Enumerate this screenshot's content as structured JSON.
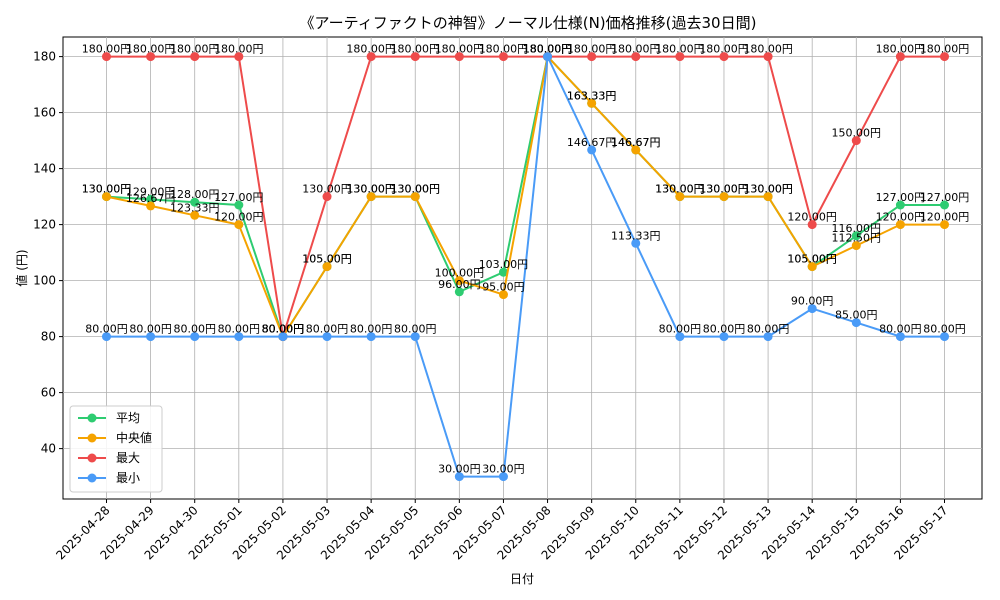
{
  "chart_data": {
    "type": "line",
    "title": "《アーティファクトの神智》ノーマル仕様(N)価格推移(過去30日間)",
    "xlabel": "日付",
    "ylabel": "値 (円)",
    "ylim": [
      22,
      187
    ],
    "yticks": [
      40,
      60,
      80,
      100,
      120,
      140,
      160,
      180
    ],
    "grid": true,
    "legend_position": "bottom-left",
    "label_suffix": "円",
    "categories": [
      "2025-04-28",
      "2025-04-29",
      "2025-04-30",
      "2025-05-01",
      "2025-05-02",
      "2025-05-03",
      "2025-05-04",
      "2025-05-05",
      "2025-05-06",
      "2025-05-07",
      "2025-05-08",
      "2025-05-09",
      "2025-05-10",
      "2025-05-11",
      "2025-05-12",
      "2025-05-13",
      "2025-05-14",
      "2025-05-15",
      "2025-05-16",
      "2025-05-17"
    ],
    "series": [
      {
        "name": "平均",
        "color": "#2ecc71",
        "values": [
          130.0,
          129.0,
          128.0,
          127.0,
          80.0,
          105.0,
          130.0,
          130.0,
          96.0,
          103.0,
          180.0,
          163.33,
          146.67,
          130.0,
          130.0,
          130.0,
          105.0,
          116.0,
          127.0,
          127.0
        ]
      },
      {
        "name": "中央値",
        "color": "#f5a300",
        "values": [
          130.0,
          126.67,
          123.33,
          120.0,
          80.0,
          105.0,
          130.0,
          130.0,
          100.0,
          95.0,
          180.0,
          163.33,
          146.67,
          130.0,
          130.0,
          130.0,
          105.0,
          112.5,
          120.0,
          120.0
        ]
      },
      {
        "name": "最大",
        "color": "#ee4b4b",
        "values": [
          180.0,
          180.0,
          180.0,
          180.0,
          80.0,
          130.0,
          180.0,
          180.0,
          180.0,
          180.0,
          180.0,
          180.0,
          180.0,
          180.0,
          180.0,
          180.0,
          120.0,
          150.0,
          180.0,
          180.0
        ]
      },
      {
        "name": "最小",
        "color": "#4a9bf7",
        "values": [
          80.0,
          80.0,
          80.0,
          80.0,
          80.0,
          80.0,
          80.0,
          80.0,
          30.0,
          30.0,
          180.0,
          146.67,
          113.33,
          80.0,
          80.0,
          80.0,
          90.0,
          85.0,
          80.0,
          80.0
        ]
      }
    ]
  }
}
